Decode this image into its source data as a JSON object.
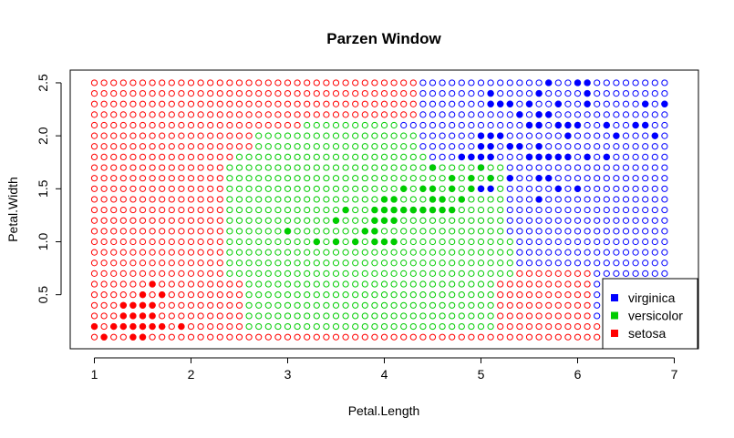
{
  "chart_data": {
    "type": "scatter",
    "title": "Parzen Window",
    "xlabel": "Petal.Length",
    "ylabel": "Petal.Width",
    "xlim": [
      0.75,
      7.25
    ],
    "ylim": [
      -0.01,
      2.62
    ],
    "xticks": [
      "1",
      "2",
      "3",
      "4",
      "5",
      "6",
      "7"
    ],
    "yticks": [
      "0.5",
      "1.0",
      "1.5",
      "2.0",
      "2.5"
    ],
    "grid": false,
    "legend_position": "bottom-right",
    "grid_points": {
      "x_start": 1.0,
      "x_end": 6.9,
      "x_step": 0.1,
      "y_start": 0.1,
      "y_end": 2.5,
      "y_step": 0.1,
      "marker": "open circle",
      "regions": {
        "versicolor": [
          {
            "ymin": 0.2,
            "ymax": 0.6,
            "xmin": 2.6,
            "xmax": 5.1
          },
          {
            "ymin": 0.7,
            "ymax": 1.5,
            "xmin": 2.4,
            "xmax": 5.3
          },
          {
            "ymin": 1.6,
            "ymax": 1.7,
            "xmin": 2.4,
            "xmax": 5.2
          },
          {
            "ymin": 1.8,
            "ymax": 1.8,
            "xmin": 2.5,
            "xmax": 4.4
          },
          {
            "ymin": 1.9,
            "ymax": 2.0,
            "xmin": 2.7,
            "xmax": 4.3
          },
          {
            "ymin": 2.1,
            "ymax": 2.1,
            "xmin": 3.2,
            "xmax": 4.1
          }
        ],
        "virginica": [
          {
            "ymin": 0.3,
            "ymax": 0.7,
            "xmin": 6.2,
            "xmax": 6.9
          },
          {
            "ymin": 0.8,
            "ymax": 1.0,
            "xmin": 5.4,
            "xmax": 6.9
          },
          {
            "ymin": 1.1,
            "ymax": 1.5,
            "xmin": 5.3,
            "xmax": 6.9
          },
          {
            "ymin": 1.6,
            "ymax": 1.7,
            "xmin": 5.3,
            "xmax": 6.9
          },
          {
            "ymin": 1.8,
            "ymax": 1.8,
            "xmin": 4.5,
            "xmax": 6.9
          },
          {
            "ymin": 1.9,
            "ymax": 2.0,
            "xmin": 4.4,
            "xmax": 6.9
          },
          {
            "ymin": 2.1,
            "ymax": 2.1,
            "xmin": 4.2,
            "xmax": 6.9
          },
          {
            "ymin": 2.2,
            "ymax": 2.5,
            "xmin": 4.4,
            "xmax": 6.9
          }
        ],
        "default": "setosa"
      }
    },
    "series": [
      {
        "name": "virginica",
        "color": "#0000FF",
        "marker": "filled circle",
        "x": [
          5.7,
          6.0,
          6.1,
          5.1,
          5.6,
          6.1,
          5.1,
          5.2,
          5.3,
          5.5,
          5.8,
          6.1,
          6.7,
          6.9,
          5.4,
          5.6,
          5.7,
          5.9,
          6.3,
          5.5,
          5.6,
          5.8,
          6.0,
          6.6,
          6.7,
          5.0,
          5.1,
          5.2,
          5.9,
          6.4,
          6.8,
          5.1,
          5.3,
          5.4,
          5.6,
          5.0,
          5.3,
          5.5,
          5.7,
          4.9,
          5.1,
          5.5,
          5.6,
          5.9,
          6.3,
          4.8,
          4.9,
          5.0,
          5.1,
          5.8,
          6.1,
          4.5,
          5.1,
          5.3,
          5.6,
          5.7,
          5.0,
          5.8,
          6.0,
          5.0,
          5.1,
          5.6,
          4.8,
          5.0
        ],
        "y": [
          2.5,
          2.5,
          2.5,
          2.4,
          2.4,
          2.4,
          2.3,
          2.3,
          2.3,
          2.3,
          2.3,
          2.3,
          2.3,
          2.3,
          2.2,
          2.2,
          2.2,
          2.1,
          2.1,
          2.1,
          2.1,
          2.1,
          2.1,
          2.1,
          2.1,
          2.0,
          2.0,
          2.0,
          2.0,
          2.0,
          2.0,
          1.9,
          1.9,
          1.9,
          1.9,
          1.9,
          1.9,
          1.8,
          1.8,
          1.8,
          1.8,
          1.8,
          1.8,
          1.8,
          1.8,
          1.8,
          1.8,
          1.8,
          1.8,
          1.8,
          1.8,
          1.7,
          1.6,
          1.6,
          1.6,
          1.6,
          1.5,
          1.5,
          1.5,
          1.5,
          1.5,
          1.4,
          1.8,
          1.7
        ]
      },
      {
        "name": "versicolor",
        "color": "#00CC00",
        "marker": "filled circle",
        "x": [
          4.5,
          5.0,
          4.7,
          4.9,
          5.1,
          4.2,
          4.4,
          4.5,
          4.7,
          4.9,
          4.0,
          4.1,
          4.5,
          4.6,
          4.8,
          3.9,
          4.3,
          4.4,
          4.6,
          4.7,
          3.6,
          4.0,
          4.1,
          4.2,
          4.3,
          4.4,
          4.5,
          3.5,
          3.9,
          4.0,
          4.1,
          3.0,
          3.8,
          3.9,
          3.3,
          3.5,
          3.7,
          3.9,
          4.0,
          4.1
        ],
        "y": [
          1.7,
          1.7,
          1.6,
          1.6,
          1.6,
          1.5,
          1.5,
          1.5,
          1.5,
          1.5,
          1.4,
          1.4,
          1.4,
          1.4,
          1.4,
          1.3,
          1.3,
          1.3,
          1.3,
          1.3,
          1.3,
          1.3,
          1.3,
          1.3,
          1.3,
          1.3,
          1.3,
          1.2,
          1.2,
          1.2,
          1.2,
          1.1,
          1.1,
          1.1,
          1.0,
          1.0,
          1.0,
          1.0,
          1.0,
          1.0
        ]
      },
      {
        "name": "setosa",
        "color": "#FF0000",
        "marker": "filled circle",
        "x": [
          1.6,
          1.5,
          1.7,
          1.3,
          1.4,
          1.5,
          1.6,
          1.3,
          1.4,
          1.5,
          1.6,
          1.0,
          1.2,
          1.3,
          1.4,
          1.5,
          1.6,
          1.7,
          1.9,
          1.1,
          1.4,
          1.5
        ],
        "y": [
          0.6,
          0.5,
          0.5,
          0.4,
          0.4,
          0.4,
          0.4,
          0.3,
          0.3,
          0.3,
          0.3,
          0.2,
          0.2,
          0.2,
          0.2,
          0.2,
          0.2,
          0.2,
          0.2,
          0.1,
          0.1,
          0.1
        ]
      }
    ],
    "legend": [
      {
        "label": "virginica",
        "color": "#0000FF"
      },
      {
        "label": "versicolor",
        "color": "#00CC00"
      },
      {
        "label": "setosa",
        "color": "#FF0000"
      }
    ]
  }
}
